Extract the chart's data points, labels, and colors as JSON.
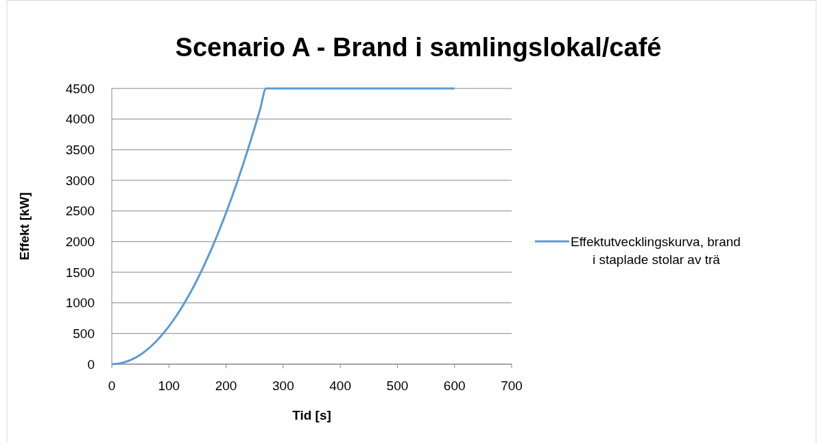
{
  "chart_data": {
    "type": "line",
    "title": "Scenario A - Brand i samlingslokal/café",
    "xlabel": "Tid [s]",
    "ylabel": "Effekt [kW]",
    "x": [
      0,
      10,
      20,
      30,
      40,
      50,
      60,
      70,
      80,
      90,
      100,
      110,
      120,
      130,
      140,
      150,
      160,
      170,
      180,
      190,
      200,
      210,
      220,
      230,
      240,
      250,
      260,
      270,
      600
    ],
    "series": [
      {
        "name": "Effektutvecklingskurva, brand i staplade stolar av trä",
        "color": "#5b9bd5",
        "values": [
          0,
          6,
          25,
          56,
          99,
          154,
          222,
          302,
          395,
          500,
          617,
          747,
          888,
          1043,
          1209,
          1388,
          1580,
          1783,
          1999,
          2227,
          2468,
          2721,
          2986,
          3264,
          3554,
          3856,
          4171,
          4500,
          4500
        ]
      }
    ],
    "xlim": [
      0,
      700
    ],
    "xticks": [
      0,
      100,
      200,
      300,
      400,
      500,
      600,
      700
    ],
    "ylim": [
      0,
      4500
    ],
    "yticks": [
      0,
      500,
      1000,
      1500,
      2000,
      2500,
      3000,
      3500,
      4000,
      4500
    ],
    "grid": "y",
    "legend": "right",
    "marker": "none",
    "line_style": "solid"
  }
}
